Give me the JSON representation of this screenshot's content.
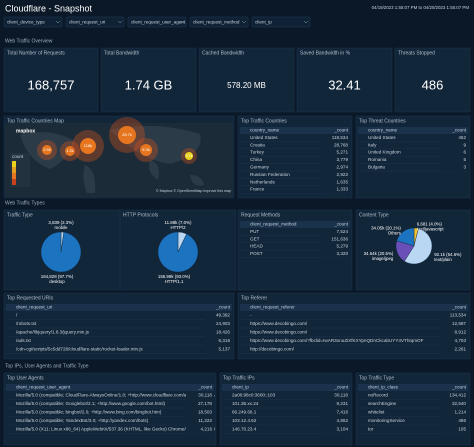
{
  "header": {
    "title": "Cloudflare - Snapshot",
    "time_range": "04/19/2023 1:55:07 PM to 04/20/2023 1:55:07 PM"
  },
  "filters": [
    "client_device_type",
    "client_request_uri",
    "client_request_user_agent",
    "client_request_method",
    "client_ip"
  ],
  "sections": [
    "Web Traffic Overview",
    "Web Traffic Types",
    "Top IPs, User Agents and Traffic Type"
  ],
  "stats": [
    {
      "title": "Total Number of Requests",
      "value": "168,757"
    },
    {
      "title": "Total Bandwidth",
      "value": "1.74 GB"
    },
    {
      "title": "Cached Bandwidth",
      "value": "578.20 MB"
    },
    {
      "title": "Saved Bandwidth in %",
      "value": "32.41"
    },
    {
      "title": "Threats Stopped",
      "value": "486"
    }
  ],
  "map": {
    "title": "Top Traffic Countries Map",
    "logo": "mapbox",
    "legend_title": "count",
    "attribution": "© Mapbox © OpenStreetMap Improve this map",
    "bubbles": [
      "2.9k",
      "1.3k",
      "118k",
      "28.7k",
      "5.3k",
      "3.7k"
    ]
  },
  "tables": [
    {
      "title": "Top Traffic Countries",
      "columns": [
        "country_name",
        "_count"
      ],
      "rows": [
        [
          "United States",
          "118,534"
        ],
        [
          "Croatia",
          "28,768"
        ],
        [
          "Turkey",
          "5,271"
        ],
        [
          "China",
          "3,779"
        ],
        [
          "Germany",
          "2,974"
        ],
        [
          "Russian Federation",
          "2,922"
        ],
        [
          "Netherlands",
          "1,635"
        ],
        [
          "France",
          "1,333"
        ]
      ]
    },
    {
      "title": "Top Threat Countries",
      "columns": [
        "country_name",
        "_count"
      ],
      "rows": [
        [
          "United States",
          "462"
        ],
        [
          "Italy",
          "9"
        ],
        [
          "United Kingdom",
          "6"
        ],
        [
          "Romania",
          "5"
        ],
        [
          "Bulgaria",
          "3"
        ]
      ]
    },
    {
      "title": "Request Methods",
      "columns": [
        "client_request_method",
        "_count"
      ],
      "rows": [
        [
          "PUT",
          "7,524"
        ],
        [
          "GET",
          "151,636"
        ],
        [
          "HEAD",
          "5,279"
        ],
        [
          "POST",
          "3,320"
        ]
      ]
    },
    {
      "title": "Top Requested URIs",
      "columns": [
        "client_request_uri",
        "_count"
      ],
      "rows": [
        [
          "/",
          "49,392"
        ],
        [
          "/robots.txt",
          "24,903"
        ],
        [
          "/apache/libjquery/1.8.3/jquery.min.js",
          "18,426"
        ],
        [
          "/ads.txt",
          "6,316"
        ],
        [
          "/cdn-cgi/scripts/5c5dd728/cloudflare-static/rocket-loader.min.js",
          "5,137"
        ]
      ]
    },
    {
      "title": "Top Referer",
      "columns": [
        "client_request_referer",
        "_count"
      ],
      "rows": [
        [
          "-",
          "113,534"
        ],
        [
          "https://www.decobingo.com/",
          "12,687"
        ],
        [
          "https://www.decobingo.com/",
          "8,912"
        ],
        [
          "https://www.decobingo.com/?fbclid=IwAR3onuZiXfKXYpnQDnCkcabUYY4VThIqmOF",
          "4,703"
        ],
        [
          "http://decobingo.com/",
          "2,261"
        ]
      ]
    },
    {
      "title": "Top User Agents",
      "columns": [
        "client_request_user_agent",
        "_count"
      ],
      "rows": [
        [
          "Mozilla/5.0 (compatible; CloudFlare-AlwaysOnline/1.0; +http://www.cloudflare.com/always-online) AppleWebKit/534.34",
          "30,118"
        ],
        [
          "Mozilla/5.0 (compatible; Googlebot/2.1; +http://www.google.com/bot.html)",
          "27,178"
        ],
        [
          "Mozilla/5.0 (compatible; bingbot/2.0; +http://www.bing.com/bingbot.htm)",
          "18,503"
        ],
        [
          "Mozilla/5.0 (compatible; YandexBot/3.0; +http://yandex.com/bots)",
          "11,223"
        ],
        [
          "Mozilla/5.0 (X11; Linux x86_64) AppleWebKit/537.36 (KHTML, like Gecko) Chrome/61.0.3163.100 Safari/537.36",
          "4,216"
        ]
      ]
    },
    {
      "title": "Top Traffic IPs",
      "columns": [
        "client_ip",
        "_count"
      ],
      "rows": [
        [
          "2a06:98c0:3600::103",
          "30,118"
        ],
        [
          "101.35.xx.24",
          "9,231"
        ],
        [
          "66.249.66.1",
          "7,416"
        ],
        [
          "103.12.4.62",
          "4,862"
        ],
        [
          "146.70.23.4",
          "3,104"
        ]
      ]
    },
    {
      "title": "Top Traffic Type",
      "columns": [
        "client_ip_class",
        "_count"
      ],
      "rows": [
        [
          "noRecord",
          "134,412"
        ],
        [
          "searchEngine",
          "32,540"
        ],
        [
          "whitelist",
          "1,214"
        ],
        [
          "monitoringService",
          "486"
        ],
        [
          "tor",
          "105"
        ]
      ]
    }
  ],
  "pies": [
    {
      "title": "Traffic Type",
      "categories": [
        "mobile",
        "desktop"
      ],
      "values": [
        3839,
        164828
      ],
      "value_labels": [
        "3,839 (2.3%)",
        "164,828 (97.7%)"
      ],
      "colors": [
        "#b9d7f2",
        "#1c74c0"
      ]
    },
    {
      "title": "HTTP Protocols",
      "categories": [
        "HTTP/2",
        "HTTP/1.1"
      ],
      "values": [
        11880,
        155990
      ],
      "value_labels": [
        "11.88k (7.0%)",
        "155.99k (93.0%)"
      ],
      "colors": [
        "#b9d7f2",
        "#1c74c0"
      ]
    },
    {
      "title": "Content Type",
      "categories": [
        "text/javascript",
        "text/plain",
        "image/jpeg",
        "Others"
      ],
      "values": [
        6681,
        92100,
        34640,
        34050
      ],
      "value_labels": [
        "6,681 (4.0%)",
        "92.1k (54.6%)",
        "34.64k (20.5%)",
        "34.05k (20.1%)"
      ],
      "colors": [
        "#f2c230",
        "#b9d7f2",
        "#6b4fb8",
        "#1c74c0"
      ]
    }
  ]
}
